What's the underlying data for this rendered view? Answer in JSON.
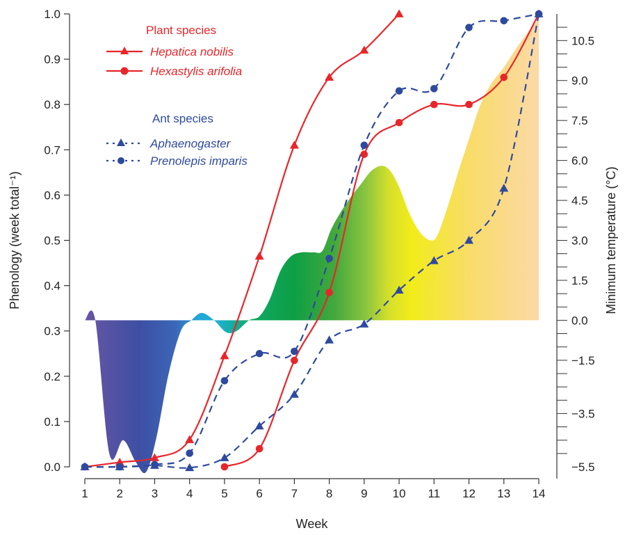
{
  "chart_data": {
    "type": "line",
    "xlabel": "Week",
    "ylabel": "Phenology (week total⁻¹)",
    "y2label": "Minimum temperature (°C)",
    "x_ticks": [
      "1",
      "2",
      "3",
      "4",
      "5",
      "6",
      "7",
      "8",
      "9",
      "10",
      "11",
      "12",
      "13",
      "14"
    ],
    "y_ticks": [
      "0.0",
      "0.1",
      "0.2",
      "0.3",
      "0.4",
      "0.5",
      "0.6",
      "0.7",
      "0.8",
      "0.9",
      "1.0"
    ],
    "y2_ticks": [
      "10.5",
      "9.0",
      "7.5",
      "6.0",
      "4.5",
      "3.0",
      "1.5",
      "0.0",
      "−1.5",
      "−3.5",
      "−5.5"
    ],
    "xlim": [
      1,
      14
    ],
    "ylim": [
      0,
      1
    ],
    "y2lim": [
      -5.5,
      11.5
    ],
    "grid": false,
    "legend": {
      "position": "top-left",
      "groups": [
        {
          "title": "Plant species",
          "color": "#e8262a",
          "entries": [
            "Hepatica nobilis",
            "Hexastylis arifolia"
          ]
        },
        {
          "title": "Ant species",
          "color": "#2e4a9e",
          "entries": [
            "Aphaenogaster",
            "Prenolepis imparis"
          ]
        }
      ]
    },
    "series": [
      {
        "name": "Hepatica nobilis",
        "group": "plant",
        "marker": "triangle",
        "dash": false,
        "color": "#e8262a",
        "x": [
          1,
          2,
          3,
          4,
          5,
          6,
          7,
          8,
          9,
          10
        ],
        "values": [
          0.0,
          0.01,
          0.02,
          0.06,
          0.245,
          0.465,
          0.71,
          0.86,
          0.92,
          1.0
        ]
      },
      {
        "name": "Hexastylis arifolia",
        "group": "plant",
        "marker": "circle",
        "dash": false,
        "color": "#e8262a",
        "x": [
          5,
          6,
          7,
          8,
          9,
          10,
          11,
          12,
          13,
          14
        ],
        "values": [
          0.0,
          0.04,
          0.235,
          0.385,
          0.69,
          0.76,
          0.8,
          0.8,
          0.86,
          1.0
        ]
      },
      {
        "name": "Aphaenogaster",
        "group": "ant",
        "marker": "triangle",
        "dash": true,
        "color": "#2e4a9e",
        "x": [
          1,
          2,
          3,
          4,
          5,
          6,
          7,
          8,
          9,
          10,
          11,
          12,
          13,
          14
        ],
        "values": [
          0.0,
          0.0,
          0.003,
          -0.002,
          0.02,
          0.09,
          0.16,
          0.28,
          0.315,
          0.39,
          0.455,
          0.5,
          0.615,
          1.0
        ]
      },
      {
        "name": "Prenolepis imparis",
        "group": "ant",
        "marker": "circle",
        "dash": true,
        "color": "#2e4a9e",
        "x": [
          1,
          2,
          3,
          4,
          5,
          6,
          7,
          8,
          9,
          10,
          11,
          12,
          13,
          14
        ],
        "values": [
          0.0,
          0.0,
          0.005,
          0.03,
          0.19,
          0.25,
          0.255,
          0.46,
          0.71,
          0.83,
          0.835,
          0.97,
          0.985,
          1.0
        ]
      }
    ],
    "temperature": {
      "baseline": 0.0,
      "x": [
        1,
        1.3,
        1.7,
        2.1,
        2.45,
        2.75,
        3.05,
        3.4,
        3.75,
        4.05,
        4.35,
        4.7,
        5.05,
        5.35,
        5.7,
        6.0,
        6.3,
        6.6,
        6.9,
        7.2,
        7.55,
        7.8,
        8.05,
        8.3,
        8.6,
        8.9,
        9.2,
        9.5,
        9.75,
        10.0,
        10.3,
        10.6,
        10.9,
        11.1,
        11.4,
        11.7,
        12.0,
        12.3,
        12.6,
        13.0,
        13.4,
        13.8,
        14.0
      ],
      "values": [
        0.0,
        0.0,
        -5.0,
        -4.5,
        -5.3,
        -5.7,
        -4.4,
        -2.0,
        -0.4,
        0.0,
        0.28,
        0.0,
        -0.45,
        -0.4,
        0.0,
        0.15,
        0.8,
        1.85,
        2.4,
        2.55,
        2.55,
        2.6,
        3.4,
        4.0,
        4.6,
        5.1,
        5.6,
        5.8,
        5.6,
        5.0,
        4.0,
        3.3,
        3.0,
        3.2,
        4.3,
        5.6,
        6.8,
        8.0,
        8.8,
        9.5,
        10.3,
        11.0,
        11.3
      ]
    }
  }
}
